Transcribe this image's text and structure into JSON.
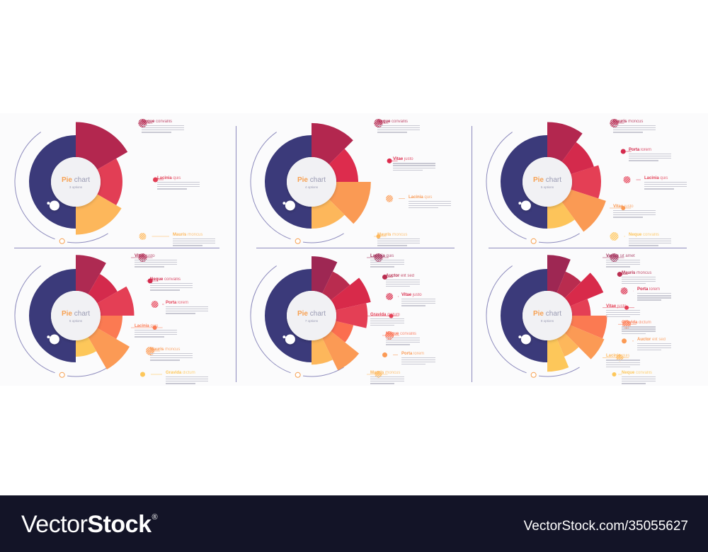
{
  "chart_data": [
    {
      "type": "pie",
      "title": "Pie chart",
      "subtitle": "3 options",
      "options_count": "3",
      "base_segment_color": "#3b3a7a",
      "slices": [
        {
          "label_bold": "Neque",
          "label_rest": "convallis",
          "color": "#b3274f",
          "radius": 1.28,
          "span_deg": 60
        },
        {
          "label_bold": "Lacinia",
          "label_rest": "quis",
          "color": "#e23e55",
          "radius": 1.0,
          "span_deg": 60
        },
        {
          "label_bold": "Mauris",
          "label_rest": "rhoncus",
          "color": "#fdb75b",
          "radius": 1.13,
          "span_deg": 60
        }
      ]
    },
    {
      "type": "pie",
      "title": "Pie chart",
      "subtitle": "4 options",
      "options_count": "4",
      "base_segment_color": "#3b3a7a",
      "slices": [
        {
          "label_bold": "Neque",
          "label_rest": "convallis",
          "color": "#b3274f",
          "radius": 1.26,
          "span_deg": 45
        },
        {
          "label_bold": "Vitae",
          "label_rest": "justo",
          "color": "#dd2c4d",
          "radius": 1.0,
          "span_deg": 45
        },
        {
          "label_bold": "Lacinia",
          "label_rest": "quis",
          "color": "#fa9a54",
          "radius": 1.27,
          "span_deg": 45
        },
        {
          "label_bold": "Mauris",
          "label_rest": "rhoncus",
          "color": "#fdb75b",
          "radius": 1.0,
          "span_deg": 45
        }
      ]
    },
    {
      "type": "pie",
      "title": "Pie chart",
      "subtitle": "5 options",
      "options_count": "5",
      "base_segment_color": "#3b3a7a",
      "slices": [
        {
          "label_bold": "Mauris",
          "label_rest": "rhoncus",
          "color": "#b3274f",
          "radius": 1.28,
          "span_deg": 36
        },
        {
          "label_bold": "Porta",
          "label_rest": "lorem",
          "color": "#d42a4c",
          "radius": 1.05,
          "span_deg": 36
        },
        {
          "label_bold": "Lacinia",
          "label_rest": "quis",
          "color": "#e43f55",
          "radius": 1.15,
          "span_deg": 36
        },
        {
          "label_bold": "Vitae",
          "label_rest": "justo",
          "color": "#fa9a54",
          "radius": 1.32,
          "span_deg": 36
        },
        {
          "label_bold": "Neque",
          "label_rest": "convallis",
          "color": "#fdc45a",
          "radius": 1.0,
          "span_deg": 36
        }
      ]
    },
    {
      "type": "pie",
      "title": "Pie chart",
      "subtitle": "6 options",
      "options_count": "6",
      "base_segment_color": "#3b3a7a",
      "slices": [
        {
          "label_bold": "Vitae",
          "label_rest": "justo",
          "color": "#ae2a52",
          "radius": 1.3,
          "span_deg": 30
        },
        {
          "label_bold": "Neque",
          "label_rest": "convallis",
          "color": "#d42a4c",
          "radius": 1.03,
          "span_deg": 30
        },
        {
          "label_bold": "Porta",
          "label_rest": "lorem",
          "color": "#e43f55",
          "radius": 1.25,
          "span_deg": 30
        },
        {
          "label_bold": "Lacinia",
          "label_rest": "quis",
          "color": "#fb7a52",
          "radius": 1.0,
          "span_deg": 30
        },
        {
          "label_bold": "Mauris",
          "label_rest": "rhoncus",
          "color": "#fb9a55",
          "radius": 1.33,
          "span_deg": 30
        },
        {
          "label_bold": "Gravida",
          "label_rest": "dictum",
          "color": "#fdc75a",
          "radius": 0.88,
          "span_deg": 30
        }
      ]
    },
    {
      "type": "pie",
      "title": "Pie chart",
      "subtitle": "7 options",
      "options_count": "7",
      "base_segment_color": "#3b3a7a",
      "slices": [
        {
          "label_bold": "Lacinia",
          "label_rest": "quis",
          "color": "#9e2753",
          "radius": 1.27,
          "span_deg": 25.7
        },
        {
          "label_bold": "Auctor",
          "label_rest": "elit sed",
          "color": "#b92c4f",
          "radius": 1.05,
          "span_deg": 25.7
        },
        {
          "label_bold": "Vitae",
          "label_rest": "justo",
          "color": "#d82a4a",
          "radius": 1.3,
          "span_deg": 25.7
        },
        {
          "label_bold": "Gravida",
          "label_rest": "dictum",
          "color": "#e43f55",
          "radius": 1.2,
          "span_deg": 25.7
        },
        {
          "label_bold": "Neque",
          "label_rest": "convallis",
          "color": "#fb6e4f",
          "radius": 0.92,
          "span_deg": 25.7
        },
        {
          "label_bold": "Porta",
          "label_rest": "lorem",
          "color": "#fb9a55",
          "radius": 1.3,
          "span_deg": 25.7
        },
        {
          "label_bold": "Mauris",
          "label_rest": "rhoncus",
          "color": "#fdb75b",
          "radius": 1.05,
          "span_deg": 25.7
        }
      ]
    },
    {
      "type": "pie",
      "title": "Pie chart",
      "subtitle": "8 options",
      "options_count": "8",
      "base_segment_color": "#3b3a7a",
      "slices": [
        {
          "label_bold": "Varius",
          "label_rest": "sit amet",
          "color": "#9e2753",
          "radius": 1.3,
          "span_deg": 22.5
        },
        {
          "label_bold": "Mauris",
          "label_rest": "rhoncus",
          "color": "#b92c4f",
          "radius": 1.02,
          "span_deg": 22.5
        },
        {
          "label_bold": "Porta",
          "label_rest": "lorem",
          "color": "#d82a4a",
          "radius": 1.3,
          "span_deg": 22.5
        },
        {
          "label_bold": "Vitae",
          "label_rest": "justo",
          "color": "#e43f55",
          "radius": 0.93,
          "span_deg": 22.5
        },
        {
          "label_bold": "Gravida",
          "label_rest": "dictum",
          "color": "#fb7a52",
          "radius": 1.28,
          "span_deg": 22.5
        },
        {
          "label_bold": "Auctor",
          "label_rest": "elit sed",
          "color": "#fb9a55",
          "radius": 1.32,
          "span_deg": 22.5
        },
        {
          "label_bold": "Lacinia",
          "label_rest": "quis",
          "color": "#fdb75b",
          "radius": 0.95,
          "span_deg": 22.5
        },
        {
          "label_bold": "Neque",
          "label_rest": "convallis",
          "color": "#fdc75a",
          "radius": 1.2,
          "span_deg": 22.5
        }
      ]
    }
  ],
  "footer": {
    "brand_light": "Vector",
    "brand_bold": "Stock",
    "brand_mark": "®",
    "url": "VectorStock.com/35055627"
  },
  "colors": {
    "navy": "#3b3a7a",
    "divider": "#8d8bbd",
    "center_fill": "#f1f1f4",
    "accent_orange": "#f7a152",
    "footer_bg": "#131427"
  }
}
